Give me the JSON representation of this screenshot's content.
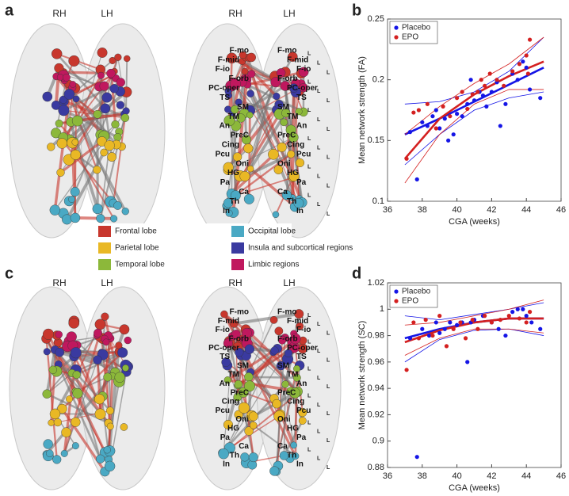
{
  "panels": {
    "a": "a",
    "b": "b",
    "c": "c",
    "d": "d"
  },
  "hemispheres": {
    "right": "RH",
    "left": "LH"
  },
  "subscript": "L",
  "brain_labels": [
    "F-mo",
    "F-mid",
    "F-io",
    "F-orb",
    "PC-oper",
    "TS",
    "SM",
    "TM",
    "An",
    "PreC",
    "Cing",
    "Pcu",
    "Oni",
    "HG",
    "Pa",
    "Ca",
    "Th",
    "In"
  ],
  "lobe_legend": [
    "Frontal lobe",
    "Parietal lobe",
    "Temporal lobe",
    "Occipital lobe",
    "Insula and subcortical regions",
    "Limbic regions"
  ],
  "lobe_colors": [
    "#c8372d",
    "#e9b825",
    "#8cb83a",
    "#4aa9c4",
    "#3a3aa0",
    "#c0185e"
  ],
  "chart_data": [
    {
      "type": "scatter",
      "ylabel": "Mean network strength (FA)",
      "xlabel": "CGA (weeks)",
      "xlim": [
        36,
        46
      ],
      "xticks": [
        36,
        38,
        40,
        42,
        44,
        46
      ],
      "ylim": [
        0.1,
        0.25
      ],
      "yticks": [
        0.1,
        0.15,
        0.2,
        0.25
      ],
      "legend": "upper left",
      "series": [
        {
          "name": "Placebo",
          "color": "#1515e6",
          "x": [
            37.3,
            37.7,
            38,
            38.3,
            38.6,
            38.8,
            39,
            39.3,
            39.5,
            39.8,
            40,
            40.3,
            40.6,
            40.8,
            41,
            41.3,
            41.5,
            41.7,
            42,
            42.3,
            42.5,
            42.8,
            43.2,
            43.5,
            43.8,
            44,
            44.2,
            44.8
          ],
          "values": [
            0.157,
            0.118,
            0.165,
            0.162,
            0.17,
            0.175,
            0.16,
            0.168,
            0.15,
            0.155,
            0.172,
            0.17,
            0.18,
            0.2,
            0.183,
            0.19,
            0.187,
            0.178,
            0.19,
            0.198,
            0.162,
            0.18,
            0.205,
            0.2,
            0.215,
            0.21,
            0.192,
            0.185
          ],
          "fit": {
            "x": [
              37,
              39,
              41,
              43,
              45
            ],
            "values": [
              0.155,
              0.168,
              0.182,
              0.196,
              0.21
            ],
            "lower": [
              0.13,
              0.155,
              0.175,
              0.185,
              0.19
            ],
            "upper": [
              0.18,
              0.182,
              0.19,
              0.207,
              0.235
            ]
          }
        },
        {
          "name": "EPO",
          "color": "#d42020",
          "x": [
            37.1,
            37.5,
            37.8,
            38.3,
            38.8,
            39.2,
            39.6,
            40,
            40.3,
            40.6,
            40.9,
            41.2,
            41.4,
            41.6,
            41.9,
            42.3,
            42.7,
            43.2,
            43.6,
            44,
            44.2,
            44.1
          ],
          "values": [
            0.135,
            0.173,
            0.175,
            0.18,
            0.16,
            0.178,
            0.17,
            0.185,
            0.19,
            0.176,
            0.188,
            0.19,
            0.2,
            0.195,
            0.205,
            0.2,
            0.195,
            0.207,
            0.213,
            0.22,
            0.233,
            0.205
          ],
          "fit": {
            "x": [
              37,
              39,
              41,
              43,
              45
            ],
            "values": [
              0.135,
              0.168,
              0.188,
              0.203,
              0.215
            ],
            "lower": [
              0.115,
              0.155,
              0.18,
              0.192,
              0.192
            ],
            "upper": [
              0.155,
              0.178,
              0.197,
              0.213,
              0.235
            ]
          }
        }
      ]
    },
    {
      "type": "scatter",
      "ylabel": "Mean network strength (SC)",
      "xlabel": "CGA (weeks)",
      "xlim": [
        36,
        46
      ],
      "xticks": [
        36,
        38,
        40,
        42,
        44,
        46
      ],
      "ylim": [
        0.88,
        1.02
      ],
      "yticks": [
        0.88,
        0.9,
        0.92,
        0.94,
        0.96,
        0.98,
        1,
        1.02
      ],
      "legend": "upper left",
      "series": [
        {
          "name": "Placebo",
          "color": "#1515e6",
          "x": [
            37.3,
            37.7,
            38,
            38.4,
            38.8,
            39,
            39.3,
            39.6,
            40,
            40.3,
            40.6,
            40.8,
            41,
            41.5,
            42,
            42.4,
            42.8,
            43.2,
            43.5,
            43.8,
            44,
            44.3,
            44.8
          ],
          "values": [
            0.978,
            0.888,
            0.985,
            0.98,
            0.99,
            0.982,
            0.985,
            0.99,
            0.988,
            0.99,
            0.96,
            0.99,
            0.992,
            0.995,
            0.99,
            0.985,
            0.98,
            0.998,
            1,
            1,
            0.995,
            0.99,
            0.985
          ],
          "fit": {
            "x": [
              37,
              39,
              41,
              43,
              45
            ],
            "values": [
              0.978,
              0.985,
              0.99,
              0.993,
              0.993
            ],
            "lower": [
              0.96,
              0.977,
              0.984,
              0.985,
              0.98
            ],
            "upper": [
              0.995,
              0.992,
              0.996,
              1,
              1.005
            ]
          }
        },
        {
          "name": "EPO",
          "color": "#d42020",
          "x": [
            37.1,
            37.5,
            37.8,
            38.2,
            38.6,
            39,
            39.4,
            39.8,
            40.2,
            40.5,
            40.9,
            41.2,
            41.6,
            42,
            42.5,
            43,
            43.6,
            44,
            44.2
          ],
          "values": [
            0.954,
            0.99,
            0.978,
            0.992,
            0.98,
            0.995,
            0.972,
            0.985,
            0.99,
            0.978,
            0.992,
            0.985,
            0.995,
            0.99,
            0.992,
            0.995,
            0.993,
            0.99,
            0.998
          ],
          "fit": {
            "x": [
              37,
              39,
              41,
              43,
              45
            ],
            "values": [
              0.975,
              0.984,
              0.99,
              0.993,
              0.993
            ],
            "lower": [
              0.965,
              0.978,
              0.985,
              0.985,
              0.982
            ],
            "upper": [
              0.988,
              0.99,
              0.995,
              1,
              1.007
            ]
          }
        }
      ]
    }
  ]
}
